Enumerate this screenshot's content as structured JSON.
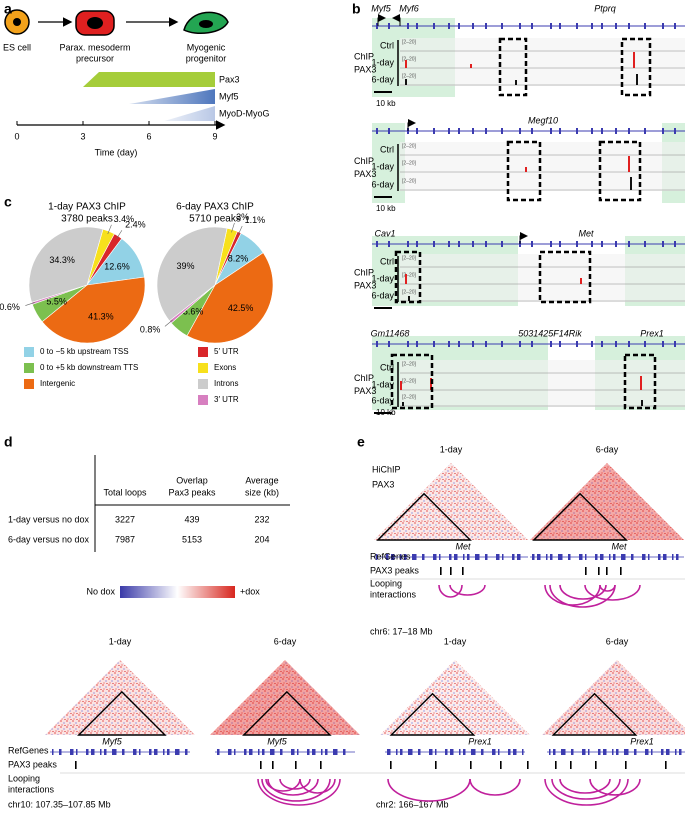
{
  "panel_a": {
    "letter": "a",
    "stages": [
      {
        "lines": [
          "ES cell"
        ]
      },
      {
        "lines": [
          "Parax. mesoderm",
          "precursor"
        ]
      },
      {
        "lines": [
          "Myogenic",
          "progenitor"
        ]
      }
    ],
    "markers": [
      {
        "name": "Pax3",
        "onset": 3,
        "color": "#a5cd3a"
      },
      {
        "name": "Myf5",
        "onset": 5.1,
        "color": "#4f77bd"
      },
      {
        "name": "MyoD-MyoG",
        "onset": 6.7,
        "color": "#b9c8e6"
      }
    ],
    "xlim": [
      0,
      9
    ],
    "xticks": [
      0,
      3,
      6,
      9
    ],
    "xlabel": "Time (day)"
  },
  "panel_b": {
    "letter": "b",
    "tracks": [
      {
        "genes": [
          "Myf5",
          "Myf6",
          "Ptprq"
        ],
        "assay": [
          "ChIP",
          "PAX3"
        ],
        "rows": [
          "Ctrl",
          "1-day",
          "6-day"
        ],
        "ranges": [
          "[2–20]",
          "[2–20]",
          "[2–20]"
        ],
        "scale": "10 kb"
      },
      {
        "genes": [
          "Megf10"
        ],
        "assay": [
          "ChIP",
          "PAX3"
        ],
        "rows": [
          "Ctrl",
          "1-day",
          "6-day"
        ],
        "ranges": [
          "[2–20]",
          "[2–20]",
          "[2–20]"
        ],
        "scale": "10 kb"
      },
      {
        "genes": [
          "Cav1",
          "Met"
        ],
        "assay": [
          "ChIP",
          "PAX3"
        ],
        "rows": [
          "Ctrl",
          "1-day",
          "6-day"
        ],
        "ranges": [
          "[2–20]",
          "[2–20]",
          "[2–20]"
        ]
      },
      {
        "genes": [
          "Gm11468",
          "5031425F14Rik",
          "Prex1"
        ],
        "assay": [
          "ChIP",
          "PAX3"
        ],
        "rows": [
          "Ctrl",
          "1-day",
          "6-day"
        ],
        "ranges": [
          "[2–20]",
          "[2–20]",
          "[2–20]"
        ],
        "scale": "10 kb"
      }
    ]
  },
  "panel_c": {
    "letter": "c"
  },
  "chart_data": [
    {
      "type": "pie",
      "title": "1-day PAX3 ChIP",
      "subtitle": "3780 peaks",
      "categories": [
        "0 to −5 kb upstream TSS",
        "0 to +5 kb downstream TTS",
        "Intergenic",
        "5′ UTR",
        "Exons",
        "Introns",
        "3′ UTR"
      ],
      "values": [
        12.6,
        5.5,
        41.3,
        2.4,
        3.4,
        34.3,
        0.6
      ],
      "value_labels": [
        "12.6%",
        "5.5%",
        "41.3%",
        "2.4%",
        "3.4%",
        "34.3%",
        "0.6%"
      ],
      "colors": [
        "#92d2e6",
        "#7cc04f",
        "#ec6a13",
        "#d9262a",
        "#f7e01c",
        "#cccccc",
        "#d77fc0"
      ]
    },
    {
      "type": "pie",
      "title": "6-day PAX3 ChIP",
      "subtitle": "5710 peaks",
      "values": [
        8.2,
        5.6,
        42.5,
        1.1,
        3,
        39,
        0.8
      ],
      "value_labels": [
        "8.2%",
        "5.6%",
        "42.5%",
        "1.1%",
        "3%",
        "39%",
        "0.8%"
      ],
      "colors": [
        "#92d2e6",
        "#7cc04f",
        "#ec6a13",
        "#d9262a",
        "#f7e01c",
        "#cccccc",
        "#d77fc0"
      ]
    }
  ],
  "panel_d": {
    "letter": "d",
    "headers": [
      [
        "Total loops"
      ],
      [
        "Overlap",
        "Pax3 peaks"
      ],
      [
        "Average",
        "size (kb)"
      ]
    ],
    "rows": [
      [
        "1-day versus no dox",
        3227,
        439,
        232
      ],
      [
        "6-day versus no dox",
        7987,
        5153,
        204
      ]
    ]
  },
  "panel_e": {
    "letter": "e",
    "colorbar": [
      "No dox",
      "+dox"
    ],
    "top": {
      "assay": [
        "HiChIP",
        "PAX3"
      ],
      "maps": [
        "1-day",
        "6-day"
      ],
      "genes": [
        "Met",
        "Met"
      ],
      "region": "chr6: 17–18 Mb",
      "tracks": [
        [
          "RefGenes"
        ],
        [
          "PAX3 peaks"
        ],
        [
          "Looping",
          "interactions"
        ]
      ]
    },
    "bottom": [
      {
        "maps": [
          "1-day",
          "6-day"
        ],
        "genes": [
          "Myf5",
          "Myf5"
        ],
        "region": "chr10: 107.35–107.85 Mb"
      },
      {
        "maps": [
          "1-day",
          "6-day"
        ],
        "genes": [
          "Prex1",
          "Prex1"
        ],
        "region": "chr2: 166–167 Mb"
      }
    ],
    "bottom_tracks": [
      [
        "RefGenes"
      ],
      [
        "PAX3 peaks"
      ],
      [
        "Looping",
        "interactions"
      ]
    ]
  }
}
